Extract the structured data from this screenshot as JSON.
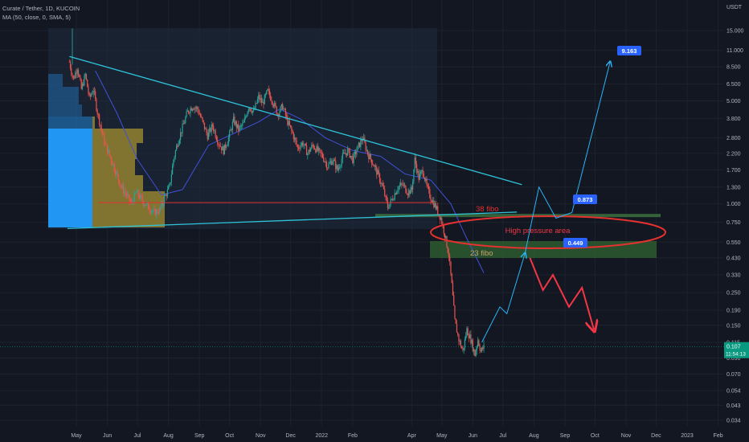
{
  "header": {
    "symbol_line": "Curate / Tether, 1D, KUCOIN",
    "indicator_line": "MA (50, close, 0, SMA, 5)"
  },
  "chart_data": {
    "type": "candlestick",
    "currency": "USDT",
    "y_scale": "log",
    "y_ticks": [
      "15.000",
      "11.000",
      "8.500",
      "6.500",
      "5.000",
      "3.800",
      "2.800",
      "2.200",
      "1.700",
      "1.300",
      "1.000",
      "0.750",
      "0.550",
      "0.430",
      "0.330",
      "0.250",
      "0.190",
      "0.150",
      "0.115",
      "0.090",
      "0.070",
      "0.054",
      "0.043",
      "0.034"
    ],
    "x_ticks": [
      "May",
      "Jun",
      "Jul",
      "Aug",
      "Sep",
      "Oct",
      "Nov",
      "Dec",
      "2022",
      "Feb",
      "Apr",
      "May",
      "Jun",
      "Jul",
      "Aug",
      "Sep",
      "Oct",
      "Nov",
      "Dec",
      "2023",
      "Feb"
    ],
    "last_price": "0.107",
    "countdown": "11:54:13",
    "annotations": {
      "fibo_38": "38 fibo",
      "fibo_23": "23 fibo",
      "zone_label": "High pressure area"
    },
    "targets": [
      "9.163",
      "0.873",
      "0.449"
    ],
    "price_path": [
      {
        "date": "2021-04-24",
        "price": 9.2
      },
      {
        "date": "2021-04-28",
        "price": 7.0
      },
      {
        "date": "2021-05-02",
        "price": 8.5
      },
      {
        "date": "2021-05-06",
        "price": 6.0
      },
      {
        "date": "2021-05-10",
        "price": 7.5
      },
      {
        "date": "2021-05-14",
        "price": 5.2
      },
      {
        "date": "2021-05-18",
        "price": 6.0
      },
      {
        "date": "2021-05-22",
        "price": 4.2
      },
      {
        "date": "2021-05-26",
        "price": 3.2
      },
      {
        "date": "2021-05-30",
        "price": 2.5
      },
      {
        "date": "2021-06-05",
        "price": 2.0
      },
      {
        "date": "2021-06-10",
        "price": 1.6
      },
      {
        "date": "2021-06-15",
        "price": 1.3
      },
      {
        "date": "2021-06-20",
        "price": 1.15
      },
      {
        "date": "2021-06-25",
        "price": 1.0
      },
      {
        "date": "2021-06-30",
        "price": 1.2
      },
      {
        "date": "2021-07-06",
        "price": 1.05
      },
      {
        "date": "2021-07-12",
        "price": 0.95
      },
      {
        "date": "2021-07-18",
        "price": 0.87
      },
      {
        "date": "2021-07-24",
        "price": 0.92
      },
      {
        "date": "2021-07-28",
        "price": 1.1
      },
      {
        "date": "2021-08-02",
        "price": 1.3
      },
      {
        "date": "2021-08-06",
        "price": 2.0
      },
      {
        "date": "2021-08-10",
        "price": 2.6
      },
      {
        "date": "2021-08-15",
        "price": 3.3
      },
      {
        "date": "2021-08-20",
        "price": 4.2
      },
      {
        "date": "2021-08-25",
        "price": 4.6
      },
      {
        "date": "2021-08-30",
        "price": 4.4
      },
      {
        "date": "2021-09-04",
        "price": 3.6
      },
      {
        "date": "2021-09-09",
        "price": 2.9
      },
      {
        "date": "2021-09-14",
        "price": 3.4
      },
      {
        "date": "2021-09-20",
        "price": 2.6
      },
      {
        "date": "2021-09-25",
        "price": 2.3
      },
      {
        "date": "2021-09-30",
        "price": 2.8
      },
      {
        "date": "2021-10-05",
        "price": 3.7
      },
      {
        "date": "2021-10-10",
        "price": 3.2
      },
      {
        "date": "2021-10-15",
        "price": 3.5
      },
      {
        "date": "2021-10-20",
        "price": 4.6
      },
      {
        "date": "2021-10-25",
        "price": 4.2
      },
      {
        "date": "2021-10-30",
        "price": 5.3
      },
      {
        "date": "2021-11-03",
        "price": 4.8
      },
      {
        "date": "2021-11-08",
        "price": 5.8
      },
      {
        "date": "2021-11-13",
        "price": 5.0
      },
      {
        "date": "2021-11-18",
        "price": 4.1
      },
      {
        "date": "2021-11-23",
        "price": 4.6
      },
      {
        "date": "2021-11-28",
        "price": 3.6
      },
      {
        "date": "2021-12-03",
        "price": 3.0
      },
      {
        "date": "2021-12-08",
        "price": 2.4
      },
      {
        "date": "2021-12-13",
        "price": 2.6
      },
      {
        "date": "2021-12-18",
        "price": 2.2
      },
      {
        "date": "2021-12-23",
        "price": 2.5
      },
      {
        "date": "2021-12-28",
        "price": 2.3
      },
      {
        "date": "2022-01-02",
        "price": 2.1
      },
      {
        "date": "2022-01-07",
        "price": 1.8
      },
      {
        "date": "2022-01-12",
        "price": 2.0
      },
      {
        "date": "2022-01-17",
        "price": 1.7
      },
      {
        "date": "2022-01-22",
        "price": 2.1
      },
      {
        "date": "2022-01-27",
        "price": 2.3
      },
      {
        "date": "2022-02-01",
        "price": 2.0
      },
      {
        "date": "2022-02-06",
        "price": 2.4
      },
      {
        "date": "2022-02-11",
        "price": 2.8
      },
      {
        "date": "2022-02-16",
        "price": 2.2
      },
      {
        "date": "2022-02-21",
        "price": 1.9
      },
      {
        "date": "2022-02-26",
        "price": 1.6
      },
      {
        "date": "2022-03-03",
        "price": 1.3
      },
      {
        "date": "2022-03-08",
        "price": 0.95
      },
      {
        "date": "2022-03-13",
        "price": 1.1
      },
      {
        "date": "2022-03-18",
        "price": 1.3
      },
      {
        "date": "2022-03-23",
        "price": 1.35
      },
      {
        "date": "2022-03-28",
        "price": 1.2
      },
      {
        "date": "2022-04-01",
        "price": 1.25
      },
      {
        "date": "2022-04-04",
        "price": 2.0
      },
      {
        "date": "2022-04-08",
        "price": 1.5
      },
      {
        "date": "2022-04-12",
        "price": 1.7
      },
      {
        "date": "2022-04-16",
        "price": 1.3
      },
      {
        "date": "2022-04-20",
        "price": 1.1
      },
      {
        "date": "2022-04-25",
        "price": 0.95
      },
      {
        "date": "2022-04-30",
        "price": 0.8
      },
      {
        "date": "2022-05-04",
        "price": 0.62
      },
      {
        "date": "2022-05-08",
        "price": 0.45
      },
      {
        "date": "2022-05-11",
        "price": 0.28
      },
      {
        "date": "2022-05-14",
        "price": 0.16
      },
      {
        "date": "2022-05-18",
        "price": 0.12
      },
      {
        "date": "2022-05-22",
        "price": 0.1
      },
      {
        "date": "2022-05-26",
        "price": 0.14
      },
      {
        "date": "2022-05-30",
        "price": 0.12
      },
      {
        "date": "2022-06-03",
        "price": 0.095
      },
      {
        "date": "2022-06-06",
        "price": 0.12
      },
      {
        "date": "2022-06-09",
        "price": 0.1
      },
      {
        "date": "2022-06-12",
        "price": 0.107
      }
    ],
    "ma50_path": [
      {
        "date": "2021-05-20",
        "price": 8.0
      },
      {
        "date": "2021-06-10",
        "price": 4.2
      },
      {
        "date": "2021-07-01",
        "price": 2.0
      },
      {
        "date": "2021-07-25",
        "price": 1.15
      },
      {
        "date": "2021-08-15",
        "price": 1.25
      },
      {
        "date": "2021-09-10",
        "price": 2.5
      },
      {
        "date": "2021-10-05",
        "price": 3.0
      },
      {
        "date": "2021-10-30",
        "price": 3.6
      },
      {
        "date": "2021-11-20",
        "price": 4.4
      },
      {
        "date": "2021-12-10",
        "price": 3.8
      },
      {
        "date": "2022-01-05",
        "price": 2.8
      },
      {
        "date": "2022-02-01",
        "price": 2.3
      },
      {
        "date": "2022-03-01",
        "price": 2.1
      },
      {
        "date": "2022-03-25",
        "price": 1.6
      },
      {
        "date": "2022-04-20",
        "price": 1.45
      },
      {
        "date": "2022-05-10",
        "price": 1.0
      },
      {
        "date": "2022-05-25",
        "price": 0.6
      },
      {
        "date": "2022-06-12",
        "price": 0.34
      }
    ],
    "projection_path": [
      {
        "date": "2022-06-10",
        "price": 0.115
      },
      {
        "date": "2022-06-28",
        "price": 0.2
      },
      {
        "date": "2022-07-05",
        "price": 0.18
      },
      {
        "date": "2022-07-23",
        "price": 0.46
      },
      {
        "date": "2022-08-06",
        "price": 1.3
      },
      {
        "date": "2022-08-23",
        "price": 0.8
      },
      {
        "date": "2022-09-08",
        "price": 0.873
      },
      {
        "date": "2022-10-16",
        "price": 9.163
      }
    ],
    "down_projection": [
      {
        "date": "2022-07-28",
        "price": 0.43
      },
      {
        "date": "2022-08-10",
        "price": 0.26
      },
      {
        "date": "2022-08-20",
        "price": 0.33
      },
      {
        "date": "2022-09-05",
        "price": 0.2
      },
      {
        "date": "2022-09-18",
        "price": 0.27
      },
      {
        "date": "2022-09-30",
        "price": 0.14
      }
    ],
    "resistance_line": [
      {
        "date": "2021-04-24",
        "price": 10.0
      },
      {
        "date": "2022-07-20",
        "price": 1.35
      }
    ],
    "support_line": [
      {
        "date": "2021-04-22",
        "price": 0.68
      },
      {
        "date": "2022-07-15",
        "price": 0.88
      }
    ],
    "level_38": 1.02,
    "zone_top": 0.8,
    "zone_bottom": 0.45
  },
  "colors": {
    "background": "#131722",
    "bull": "#26a69a",
    "bear": "#ef5350",
    "trendline": "#2ec3d8",
    "projection": "#29b6f6",
    "down_arrow": "#f23645",
    "ma": "#3f51d8",
    "fibo_line": "#e5312f",
    "zone": "#e5312f",
    "fibo_zone": "#2e5a2f",
    "label": "#2962ff",
    "price_tag": "#089981",
    "profile_blue": "#2196f3",
    "profile_yellow": "#a39030"
  }
}
